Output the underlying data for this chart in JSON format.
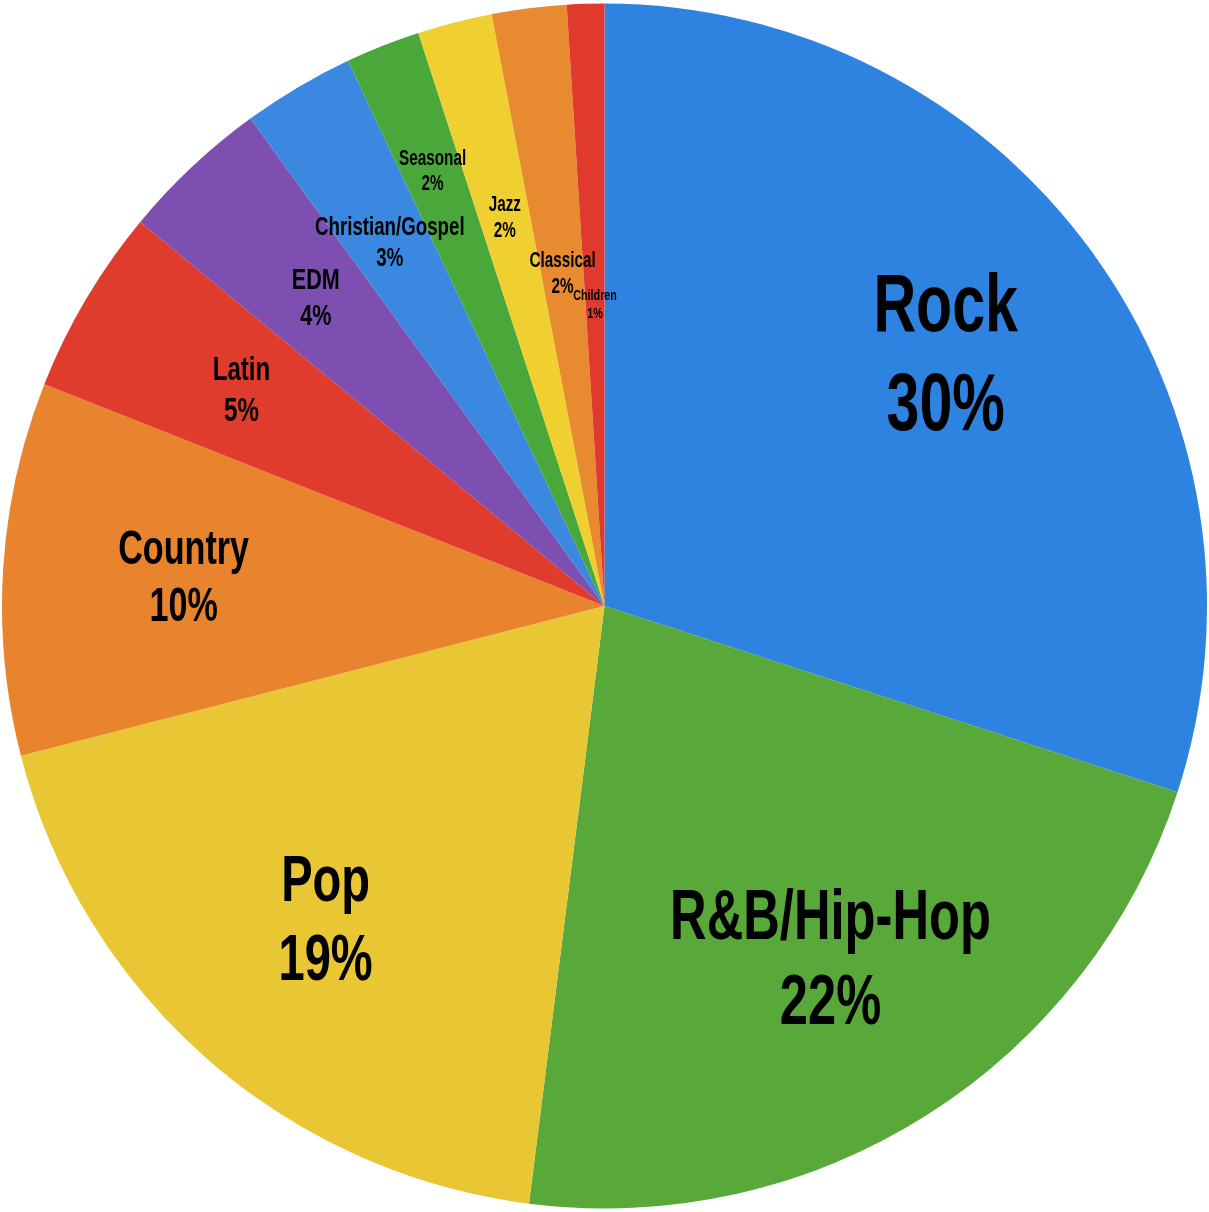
{
  "chart_data": {
    "type": "pie",
    "categories": [
      "Rock",
      "R&B/Hip-Hop",
      "Pop",
      "Country",
      "Latin",
      "EDM",
      "Christian/Gospel",
      "Seasonal",
      "Jazz",
      "Classical",
      "Children"
    ],
    "values": [
      30,
      22,
      19,
      10,
      5,
      4,
      3,
      2,
      2,
      2,
      1
    ],
    "value_labels": [
      "30%",
      "22%",
      "19%",
      "10%",
      "5%",
      "4%",
      "3%",
      "2%",
      "2%",
      "2%",
      "1%"
    ],
    "colors": [
      "#2e83e0",
      "#59a83a",
      "#e9c633",
      "#e8832e",
      "#e03c2e",
      "#7d4fb0",
      "#3a88e0",
      "#4aa83a",
      "#f0d030",
      "#e88a30",
      "#e03a2e"
    ],
    "legend": false
  }
}
